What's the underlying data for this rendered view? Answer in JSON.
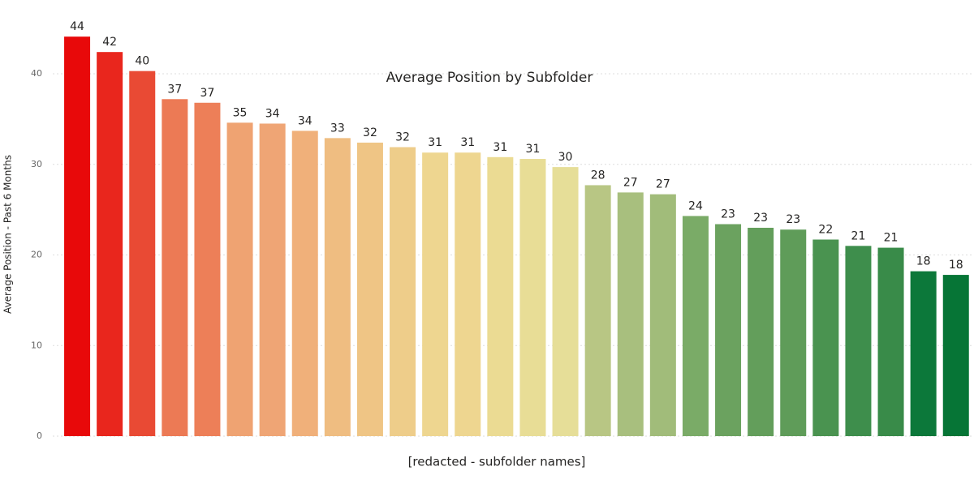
{
  "chart_data": {
    "type": "bar",
    "title": "Average Position by Subfolder",
    "x_label": "[redacted - subfolder names]",
    "y_label": "Average Position - Past 6 Months",
    "categories": [
      null,
      null,
      null,
      null,
      null,
      null,
      null,
      null,
      null,
      null,
      null,
      null,
      null,
      null,
      null,
      null,
      null,
      null,
      null,
      null,
      null,
      null,
      null,
      null,
      null,
      null,
      null,
      null
    ],
    "values": [
      44.1,
      42.4,
      40.3,
      37.2,
      36.8,
      34.6,
      34.5,
      33.7,
      32.9,
      32.4,
      31.9,
      31.3,
      31.3,
      30.8,
      30.6,
      29.7,
      27.7,
      26.9,
      26.7,
      24.3,
      23.4,
      23.0,
      22.8,
      21.7,
      21.0,
      20.8,
      18.2,
      17.8
    ],
    "value_labels": [
      "44",
      "42",
      "40",
      "37",
      "37",
      "35",
      "34",
      "34",
      "33",
      "32",
      "32",
      "31",
      "31",
      "31",
      "31",
      "30",
      "28",
      "27",
      "27",
      "24",
      "23",
      "23",
      "23",
      "22",
      "21",
      "21",
      "18",
      "18"
    ],
    "colors": [
      "#e8090a",
      "#e9261d",
      "#e94a34",
      "#ec7a55",
      "#ed7f58",
      "#efa372",
      "#efa575",
      "#f0b07a",
      "#efbd81",
      "#efc585",
      "#eecd8a",
      "#eed690",
      "#eed690",
      "#ebdb93",
      "#e8dd96",
      "#e6de98",
      "#b8c684",
      "#a8bf7e",
      "#a1bc7a",
      "#7aab67",
      "#6ba25f",
      "#639e5b",
      "#5f9c59",
      "#4a9350",
      "#3e8e4c",
      "#398b49",
      "#0c783a",
      "#067536"
    ],
    "ylim": [
      0,
      46
    ],
    "yticks": [
      0,
      10,
      20,
      30,
      40
    ],
    "grid": true
  }
}
